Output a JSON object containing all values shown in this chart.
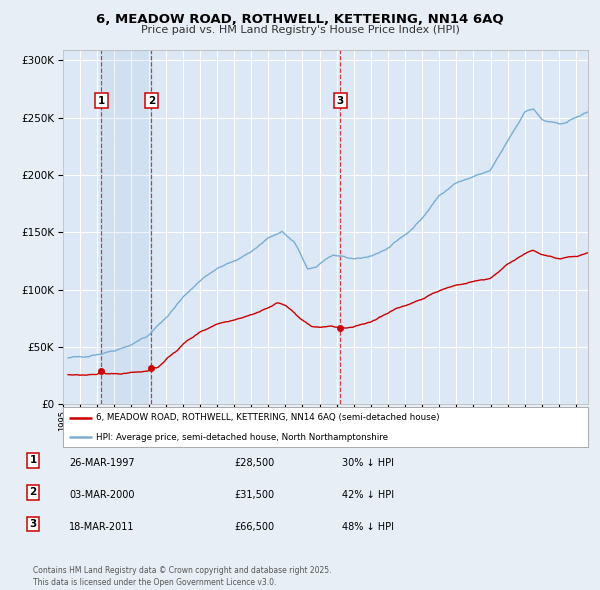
{
  "title": "6, MEADOW ROAD, ROTHWELL, KETTERING, NN14 6AQ",
  "subtitle": "Price paid vs. HM Land Registry's House Price Index (HPI)",
  "sale_prices": [
    28500,
    31500,
    66500
  ],
  "sale_labels": [
    "1",
    "2",
    "3"
  ],
  "legend_red": "6, MEADOW ROAD, ROTHWELL, KETTERING, NN14 6AQ (semi-detached house)",
  "legend_blue": "HPI: Average price, semi-detached house, North Northamptonshire",
  "table_rows": [
    {
      "num": "1",
      "date": "26-MAR-1997",
      "price": "£28,500",
      "pct": "30% ↓ HPI"
    },
    {
      "num": "2",
      "date": "03-MAR-2000",
      "price": "£31,500",
      "pct": "42% ↓ HPI"
    },
    {
      "num": "3",
      "date": "18-MAR-2011",
      "price": "£66,500",
      "pct": "48% ↓ HPI"
    }
  ],
  "footer": "Contains HM Land Registry data © Crown copyright and database right 2025.\nThis data is licensed under the Open Government Licence v3.0.",
  "bg_color": "#e8eef5",
  "plot_bg_color": "#dce8f5",
  "red_color": "#cc0000",
  "blue_color": "#7aadd4",
  "grid_color": "#ffffff",
  "ylim_max": 300000,
  "xlim_start": 1995.3,
  "xlim_end": 2025.7,
  "sale_year_decimals": [
    1997.23,
    2000.17,
    2011.21
  ]
}
